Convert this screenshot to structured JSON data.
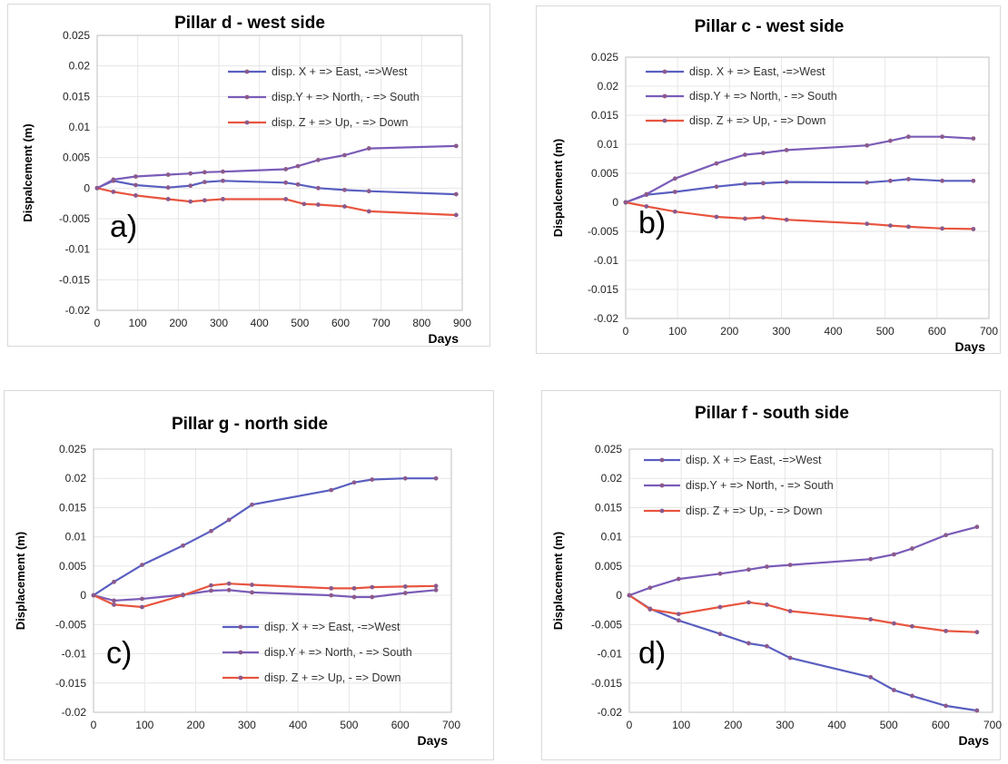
{
  "colors": {
    "x_series": "#5a5fc0",
    "y_series": "#7a5cb8",
    "z_series": "#e8553f",
    "marker": "#8b5a8c",
    "grid": "#e6e6e6",
    "axis": "#bfbfbf"
  },
  "chart_data": [
    {
      "id": "a",
      "type": "line",
      "title": "Pillar d - west side",
      "panel_letter": "a)",
      "xlabel": "Days",
      "ylabel": "Dispalcement (m)",
      "xlim": [
        0,
        900
      ],
      "ylim": [
        -0.02,
        0.025
      ],
      "x_ticks": [
        "0",
        "100",
        "200",
        "300",
        "400",
        "500",
        "600",
        "700",
        "800",
        "900"
      ],
      "y_ticks": [
        "0.025",
        "0.02",
        "0.015",
        "0.01",
        "0.005",
        "0",
        "-0.005",
        "-0.01",
        "-0.015",
        "-0.02"
      ],
      "legend": "top-right",
      "grid": true,
      "series": [
        {
          "name": "disp. X + => East, -=>West",
          "x": [
            0,
            40,
            95,
            175,
            230,
            265,
            310,
            465,
            495,
            545,
            610,
            670,
            885
          ],
          "y": [
            0,
            0.0012,
            0.0005,
            0.0001,
            0.0004,
            0.001,
            0.0012,
            0.0009,
            0.0006,
            0,
            -0.0003,
            -0.0005,
            -0.001
          ]
        },
        {
          "name": "disp.Y + => North, - => South",
          "x": [
            0,
            40,
            95,
            175,
            230,
            265,
            310,
            465,
            495,
            545,
            610,
            670,
            885
          ],
          "y": [
            0,
            0.0014,
            0.0019,
            0.0022,
            0.0024,
            0.0026,
            0.0027,
            0.0031,
            0.0036,
            0.0046,
            0.0054,
            0.0065,
            0.0069
          ]
        },
        {
          "name": "disp. Z + => Up, - => Down",
          "x": [
            0,
            40,
            95,
            175,
            230,
            265,
            310,
            465,
            510,
            545,
            610,
            670,
            885
          ],
          "y": [
            0,
            -0.0006,
            -0.0012,
            -0.0018,
            -0.0022,
            -0.002,
            -0.0018,
            -0.0018,
            -0.0026,
            -0.0027,
            -0.003,
            -0.0038,
            -0.0044
          ]
        }
      ]
    },
    {
      "id": "b",
      "type": "line",
      "title": "Pillar c - west side",
      "panel_letter": "b)",
      "xlabel": "Days",
      "ylabel": "Dispalcement (m)",
      "xlim": [
        0,
        700
      ],
      "ylim": [
        -0.02,
        0.025
      ],
      "x_ticks": [
        "0",
        "100",
        "200",
        "300",
        "400",
        "500",
        "600",
        "700"
      ],
      "y_ticks": [
        "0.025",
        "0.02",
        "0.015",
        "0.01",
        "0.005",
        "0",
        "-0.005",
        "-0.01",
        "-0.015",
        "-0.02"
      ],
      "legend": "top-right",
      "grid": true,
      "series": [
        {
          "name": "disp. X + => East, -=>West",
          "x": [
            0,
            40,
            95,
            175,
            230,
            265,
            310,
            465,
            510,
            545,
            610,
            670
          ],
          "y": [
            0,
            0.0013,
            0.0018,
            0.0027,
            0.0032,
            0.0033,
            0.0035,
            0.0034,
            0.0037,
            0.004,
            0.0037,
            0.0037
          ]
        },
        {
          "name": "disp.Y + => North, - => South",
          "x": [
            0,
            40,
            95,
            175,
            230,
            265,
            310,
            465,
            510,
            545,
            610,
            670
          ],
          "y": [
            0,
            0.0014,
            0.0041,
            0.0067,
            0.0082,
            0.0085,
            0.009,
            0.0098,
            0.0106,
            0.0113,
            0.0113,
            0.011
          ]
        },
        {
          "name": "disp. Z + => Up, - => Down",
          "x": [
            0,
            40,
            95,
            175,
            230,
            265,
            310,
            465,
            510,
            545,
            610,
            670
          ],
          "y": [
            0,
            -0.0007,
            -0.0016,
            -0.0025,
            -0.0028,
            -0.0026,
            -0.003,
            -0.0037,
            -0.004,
            -0.0042,
            -0.0045,
            -0.0046
          ]
        }
      ]
    },
    {
      "id": "c",
      "type": "line",
      "title": "Pillar g - north side",
      "panel_letter": "c)",
      "xlabel": "Days",
      "ylabel": "Displacement (m)",
      "xlim": [
        0,
        700
      ],
      "ylim": [
        -0.02,
        0.025
      ],
      "x_ticks": [
        "0",
        "100",
        "200",
        "300",
        "400",
        "500",
        "600",
        "700"
      ],
      "y_ticks": [
        "0.025",
        "0.02",
        "0.015",
        "0.01",
        "0.005",
        "0",
        "-0.005",
        "-0.01",
        "-0.015",
        "-0.02"
      ],
      "legend": "bottom-right",
      "grid": true,
      "series": [
        {
          "name": "disp. X + => East, -=>West",
          "x": [
            0,
            40,
            95,
            175,
            230,
            265,
            310,
            465,
            510,
            545,
            610,
            670
          ],
          "y": [
            0,
            0.0023,
            0.0052,
            0.0085,
            0.011,
            0.0129,
            0.0155,
            0.018,
            0.0193,
            0.0198,
            0.02,
            0.02
          ]
        },
        {
          "name": "disp.Y + => North, - => South",
          "x": [
            0,
            40,
            95,
            175,
            230,
            265,
            310,
            465,
            510,
            545,
            610,
            670
          ],
          "y": [
            0,
            -0.0009,
            -0.0006,
            0.0001,
            0.0008,
            0.0009,
            0.0005,
            0,
            -0.0003,
            -0.0003,
            0.0004,
            0.0009
          ]
        },
        {
          "name": "disp. Z + => Up, - => Down",
          "x": [
            0,
            40,
            95,
            175,
            230,
            265,
            310,
            465,
            510,
            545,
            610,
            670
          ],
          "y": [
            0,
            -0.0016,
            -0.002,
            0,
            0.0017,
            0.002,
            0.0018,
            0.0012,
            0.0012,
            0.0014,
            0.0015,
            0.0016
          ]
        }
      ]
    },
    {
      "id": "d",
      "type": "line",
      "title": "Pillar f - south side",
      "panel_letter": "d)",
      "xlabel": "Days",
      "ylabel": "Displacement (m)",
      "xlim": [
        0,
        700
      ],
      "ylim": [
        -0.02,
        0.025
      ],
      "x_ticks": [
        "0",
        "100",
        "200",
        "300",
        "400",
        "500",
        "600",
        "700"
      ],
      "y_ticks": [
        "0.025",
        "0.02",
        "0.015",
        "0.01",
        "0.005",
        "0",
        "-0.005",
        "-0.01",
        "-0.015",
        "-0.02"
      ],
      "legend": "top-left",
      "grid": true,
      "series": [
        {
          "name": "disp. X + => East, -=>West",
          "x": [
            0,
            40,
            95,
            175,
            230,
            265,
            310,
            465,
            510,
            545,
            610,
            670
          ],
          "y": [
            0,
            -0.0023,
            -0.0043,
            -0.0066,
            -0.0082,
            -0.0087,
            -0.0107,
            -0.014,
            -0.0162,
            -0.0172,
            -0.0189,
            -0.0197
          ]
        },
        {
          "name": "disp.Y + => North, - => South",
          "x": [
            0,
            40,
            95,
            175,
            230,
            265,
            310,
            465,
            510,
            545,
            610,
            670
          ],
          "y": [
            0,
            0.0013,
            0.0028,
            0.0037,
            0.0044,
            0.0049,
            0.0052,
            0.0062,
            0.007,
            0.008,
            0.0103,
            0.0117
          ]
        },
        {
          "name": "disp. Z + => Up, - => Down",
          "x": [
            0,
            40,
            95,
            175,
            230,
            265,
            310,
            465,
            510,
            545,
            610,
            670
          ],
          "y": [
            0,
            -0.0024,
            -0.0032,
            -0.002,
            -0.0012,
            -0.0016,
            -0.0027,
            -0.0041,
            -0.0048,
            -0.0053,
            -0.0061,
            -0.0063
          ]
        }
      ]
    }
  ]
}
